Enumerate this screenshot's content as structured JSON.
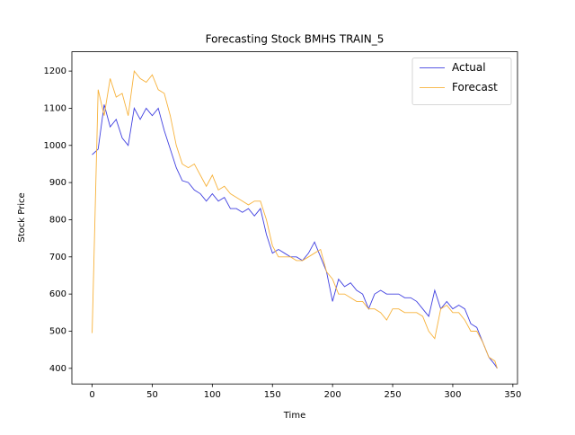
{
  "chart_data": {
    "type": "line",
    "title": "Forecasting Stock BMHS TRAIN_5",
    "x_label": "Time",
    "y_label": "Stock Price",
    "x": [
      0,
      5,
      10,
      15,
      20,
      25,
      30,
      35,
      40,
      45,
      50,
      55,
      60,
      65,
      70,
      75,
      80,
      85,
      90,
      95,
      100,
      105,
      110,
      115,
      120,
      125,
      130,
      135,
      140,
      145,
      150,
      155,
      160,
      165,
      170,
      175,
      180,
      185,
      190,
      195,
      200,
      205,
      210,
      215,
      220,
      225,
      230,
      235,
      240,
      245,
      250,
      255,
      260,
      265,
      270,
      275,
      280,
      285,
      290,
      295,
      300,
      305,
      310,
      315,
      320,
      325,
      330,
      335,
      337
    ],
    "series": [
      {
        "name": "Actual",
        "color": "#4040e0",
        "values": [
          975,
          990,
          1110,
          1050,
          1070,
          1020,
          1000,
          1100,
          1070,
          1100,
          1080,
          1100,
          1040,
          990,
          940,
          905,
          900,
          880,
          870,
          850,
          870,
          850,
          860,
          830,
          830,
          820,
          830,
          810,
          830,
          760,
          710,
          720,
          710,
          700,
          700,
          690,
          710,
          740,
          700,
          660,
          580,
          640,
          620,
          630,
          610,
          600,
          560,
          600,
          610,
          600,
          600,
          600,
          590,
          590,
          580,
          560,
          540,
          610,
          560,
          580,
          560,
          570,
          560,
          520,
          510,
          470,
          430,
          410,
          400
        ]
      },
      {
        "name": "Forecast",
        "color": "#f7b23b",
        "values": [
          495,
          1150,
          1080,
          1180,
          1130,
          1140,
          1080,
          1200,
          1180,
          1170,
          1190,
          1150,
          1140,
          1080,
          1000,
          950,
          940,
          950,
          920,
          890,
          920,
          880,
          890,
          870,
          860,
          850,
          840,
          850,
          850,
          800,
          730,
          700,
          700,
          700,
          690,
          690,
          700,
          710,
          720,
          660,
          640,
          600,
          600,
          590,
          580,
          580,
          560,
          560,
          550,
          530,
          560,
          560,
          550,
          550,
          550,
          540,
          500,
          480,
          560,
          570,
          550,
          550,
          530,
          500,
          500,
          470,
          430,
          420,
          400
        ]
      }
    ],
    "xlim": [
      -16.85,
      353.85
    ],
    "ylim": [
      358,
      1252
    ],
    "xticks": [
      0,
      50,
      100,
      150,
      200,
      250,
      300,
      350
    ],
    "yticks": [
      400,
      500,
      600,
      700,
      800,
      900,
      1000,
      1100,
      1200
    ],
    "legend": "upper right"
  }
}
